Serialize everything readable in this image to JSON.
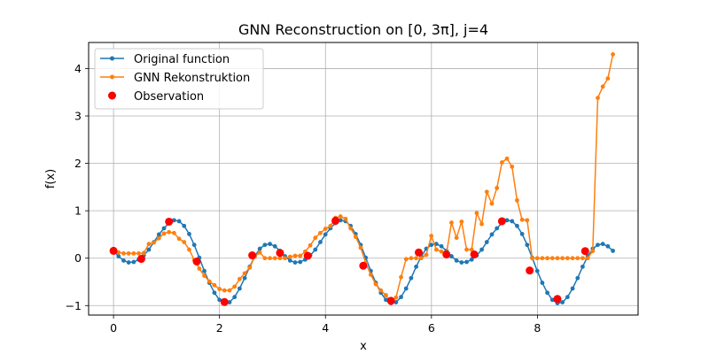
{
  "chart_data": {
    "type": "line",
    "title": "GNN Reconstruction on [0, 3π], j=4",
    "xlabel": "x",
    "ylabel": "f(x)",
    "xlim": [
      -0.47,
      9.9
    ],
    "ylim": [
      -1.2,
      4.55
    ],
    "xticks": [
      0,
      2,
      4,
      6,
      8
    ],
    "yticks": [
      -1,
      0,
      1,
      2,
      3,
      4
    ],
    "grid": true,
    "legend_position": "top-left",
    "series": [
      {
        "name": "Original function",
        "kind": "line-markers",
        "color": "#1f77b4",
        "x": [
          0,
          0.0952,
          0.1904,
          0.2856,
          0.3808,
          0.476,
          0.5712,
          0.6664,
          0.7616,
          0.8568,
          0.952,
          1.0472,
          1.1424,
          1.2376,
          1.3328,
          1.428,
          1.5232,
          1.6184,
          1.7136,
          1.8088,
          1.904,
          1.9992,
          2.0944,
          2.1896,
          2.2848,
          2.38,
          2.4752,
          2.5704,
          2.6656,
          2.7608,
          2.856,
          2.9512,
          3.0464,
          3.1416,
          3.2368,
          3.332,
          3.4272,
          3.5224,
          3.6176,
          3.7128,
          3.808,
          3.9032,
          3.9984,
          4.0936,
          4.1888,
          4.284,
          4.3792,
          4.4744,
          4.5696,
          4.6648,
          4.76,
          4.8552,
          4.9504,
          5.0456,
          5.1408,
          5.236,
          5.3312,
          5.4264,
          5.5216,
          5.6168,
          5.712,
          5.8072,
          5.9024,
          5.9976,
          6.0928,
          6.188,
          6.2832,
          6.3784,
          6.4736,
          6.5688,
          6.664,
          6.7592,
          6.8544,
          6.9496,
          7.0448,
          7.14,
          7.2352,
          7.3304,
          7.4256,
          7.5208,
          7.616,
          7.7112,
          7.8064,
          7.9016,
          7.9968,
          8.092,
          8.1872,
          8.2824,
          8.3776,
          8.4728,
          8.568,
          8.6632,
          8.7584,
          8.8536,
          8.9488,
          9.044,
          9.1392,
          9.2344,
          9.3296,
          9.4248
        ],
        "y": [
          0.155,
          0.04,
          -0.05,
          -0.09,
          -0.08,
          -0.03,
          0.06,
          0.18,
          0.34,
          0.5,
          0.63,
          0.74,
          0.8,
          0.78,
          0.68,
          0.51,
          0.28,
          0.01,
          -0.27,
          -0.52,
          -0.73,
          -0.88,
          -0.95,
          -0.93,
          -0.82,
          -0.64,
          -0.42,
          -0.18,
          0.04,
          0.2,
          0.28,
          0.3,
          0.25,
          0.155,
          0.04,
          -0.05,
          -0.09,
          -0.08,
          -0.03,
          0.06,
          0.18,
          0.34,
          0.5,
          0.63,
          0.74,
          0.8,
          0.78,
          0.68,
          0.51,
          0.28,
          0.01,
          -0.27,
          -0.52,
          -0.73,
          -0.88,
          -0.95,
          -0.93,
          -0.82,
          -0.64,
          -0.42,
          -0.18,
          0.04,
          0.2,
          0.28,
          0.3,
          0.25,
          0.155,
          0.04,
          -0.05,
          -0.09,
          -0.08,
          -0.03,
          0.06,
          0.18,
          0.34,
          0.5,
          0.63,
          0.74,
          0.8,
          0.78,
          0.68,
          0.51,
          0.28,
          0.01,
          -0.27,
          -0.52,
          -0.73,
          -0.88,
          -0.95,
          -0.93,
          -0.82,
          -0.64,
          -0.42,
          -0.18,
          0.04,
          0.2,
          0.28,
          0.3,
          0.25,
          0.155
        ]
      },
      {
        "name": "GNN Rekonstruktion",
        "kind": "line-markers",
        "color": "#ff7f0e",
        "x": [
          0,
          0.0952,
          0.1904,
          0.2856,
          0.3808,
          0.476,
          0.5712,
          0.6664,
          0.7616,
          0.8568,
          0.952,
          1.0472,
          1.1424,
          1.2376,
          1.3328,
          1.428,
          1.5232,
          1.6184,
          1.7136,
          1.8088,
          1.904,
          1.9992,
          2.0944,
          2.1896,
          2.2848,
          2.38,
          2.4752,
          2.5704,
          2.6656,
          2.7608,
          2.856,
          2.9512,
          3.0464,
          3.1416,
          3.2368,
          3.332,
          3.4272,
          3.5224,
          3.6176,
          3.7128,
          3.808,
          3.9032,
          3.9984,
          4.0936,
          4.1888,
          4.284,
          4.3792,
          4.4744,
          4.5696,
          4.6648,
          4.76,
          4.8552,
          4.9504,
          5.0456,
          5.1408,
          5.236,
          5.3312,
          5.4264,
          5.5216,
          5.6168,
          5.712,
          5.8072,
          5.9024,
          5.9976,
          6.0928,
          6.188,
          6.2832,
          6.3784,
          6.4736,
          6.5688,
          6.664,
          6.7592,
          6.8544,
          6.9496,
          7.0448,
          7.14,
          7.2352,
          7.3304,
          7.4256,
          7.5208,
          7.616,
          7.7112,
          7.8064,
          7.9016,
          7.9968,
          8.092,
          8.1872,
          8.2824,
          8.3776,
          8.4728,
          8.568,
          8.6632,
          8.7584,
          8.8536,
          8.9488,
          9.044,
          9.1392,
          9.2344,
          9.3296,
          9.4248
        ],
        "y": [
          0.14,
          0.12,
          0.1,
          0.1,
          0.1,
          0.1,
          0.11,
          0.3,
          0.33,
          0.42,
          0.52,
          0.55,
          0.53,
          0.41,
          0.34,
          0.18,
          -0.04,
          -0.22,
          -0.37,
          -0.49,
          -0.57,
          -0.65,
          -0.68,
          -0.68,
          -0.6,
          -0.44,
          -0.32,
          -0.2,
          0.03,
          0.12,
          0.0,
          0.0,
          0.0,
          0.0,
          0.0,
          0.03,
          0.05,
          0.05,
          0.14,
          0.27,
          0.43,
          0.53,
          0.62,
          0.68,
          0.85,
          0.88,
          0.83,
          0.63,
          0.45,
          0.22,
          -0.1,
          -0.35,
          -0.55,
          -0.68,
          -0.78,
          -0.94,
          -0.83,
          -0.4,
          -0.02,
          0.0,
          0.0,
          0.0,
          0.07,
          0.47,
          0.18,
          0.14,
          0.1,
          0.75,
          0.43,
          0.77,
          0.18,
          0.18,
          0.95,
          0.72,
          1.4,
          1.15,
          1.48,
          2.02,
          2.1,
          1.93,
          1.22,
          0.81,
          0.8,
          0.0,
          0.0,
          0.0,
          0.0,
          0.0,
          0.0,
          0.0,
          0.0,
          0.0,
          0.0,
          0.0,
          0.0,
          0.15,
          3.38,
          3.62,
          3.79,
          4.3
        ]
      },
      {
        "name": "Observation",
        "kind": "scatter",
        "color": "#ff0000",
        "x": [
          0,
          0.5236,
          1.0472,
          1.5708,
          2.0944,
          2.618,
          3.1416,
          3.6652,
          4.1888,
          4.7124,
          5.236,
          5.7596,
          6.2832,
          6.8068,
          7.3304,
          7.854,
          8.3776,
          8.9012
        ],
        "y": [
          0.155,
          -0.015,
          0.77,
          -0.07,
          -0.925,
          0.06,
          0.11,
          0.05,
          0.79,
          -0.16,
          -0.9,
          0.12,
          0.08,
          0.08,
          0.78,
          -0.26,
          -0.86,
          0.15
        ]
      }
    ]
  }
}
